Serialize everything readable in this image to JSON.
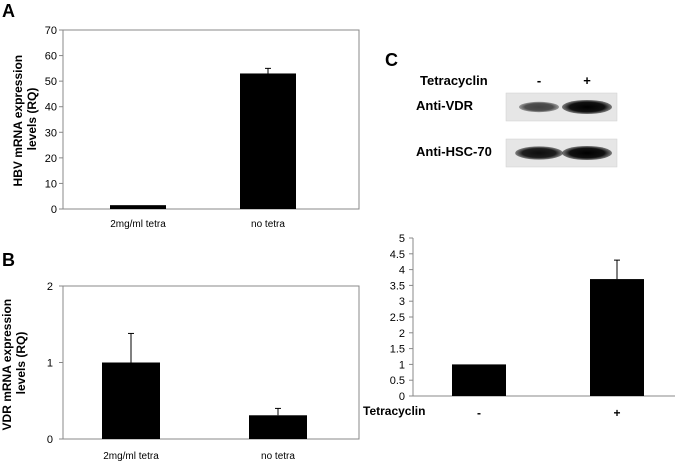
{
  "panels": {
    "a": "A",
    "b": "B",
    "c": "C"
  },
  "chart_data": [
    {
      "type": "bar",
      "panel": "A",
      "categories": [
        "2mg/ml tetra",
        "no tetra"
      ],
      "values": [
        1.5,
        53
      ],
      "errors": [
        0,
        2
      ],
      "ylabel": [
        "HBV mRNA expression",
        "levels (RQ)"
      ],
      "ylim": [
        0,
        70
      ],
      "yticks": [
        "0",
        "10",
        "20",
        "30",
        "40",
        "50",
        "60",
        "70"
      ],
      "grid": false
    },
    {
      "type": "bar",
      "panel": "B",
      "categories": [
        "2mg/ml tetra",
        "no tetra"
      ],
      "values": [
        1.0,
        0.31
      ],
      "errors": [
        0.38,
        0.09
      ],
      "ylabel": [
        "VDR mRNA expression",
        "levels (RQ)"
      ],
      "ylim": [
        0,
        2
      ],
      "yticks": [
        "0",
        "1",
        "2"
      ],
      "grid": false
    },
    {
      "type": "bar",
      "panel": "C",
      "categories": [
        "-",
        "+"
      ],
      "values": [
        1.0,
        3.7
      ],
      "errors": [
        0,
        0.6
      ],
      "xlabel": "Tetracyclin",
      "ylim": [
        0,
        5
      ],
      "yticks": [
        "0",
        "0.5",
        "1",
        "1.5",
        "2",
        "2.5",
        "3",
        "3.5",
        "4",
        "4.5",
        "5"
      ],
      "grid": false
    }
  ],
  "blot": {
    "treatment_label": "Tetracyclin",
    "lanes": [
      "-",
      "+"
    ],
    "rows": [
      {
        "label": "Anti-VDR",
        "intensity": [
          0.55,
          1.0
        ]
      },
      {
        "label": "Anti-HSC-70",
        "intensity": [
          0.9,
          1.0
        ]
      }
    ]
  }
}
